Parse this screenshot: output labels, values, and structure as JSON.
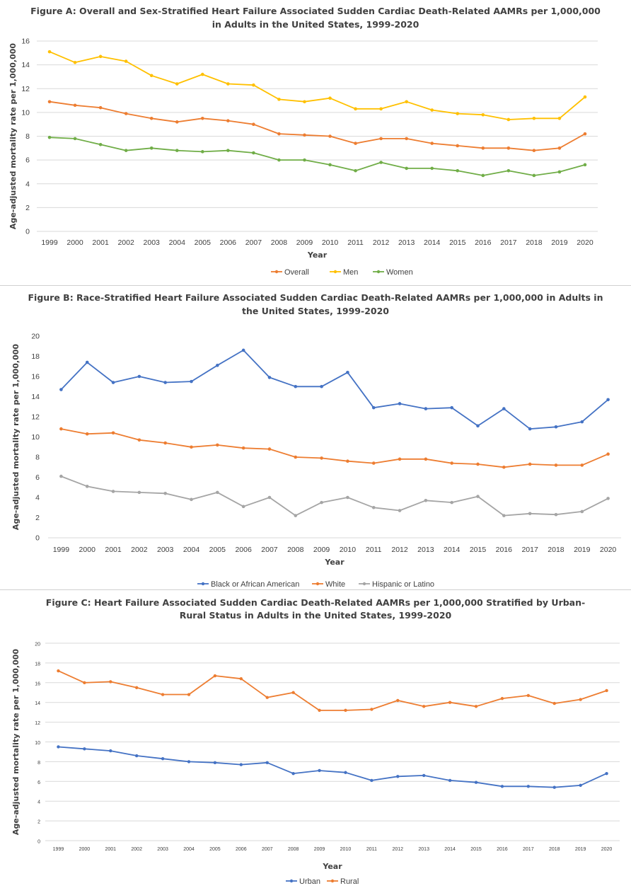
{
  "chart_data": [
    {
      "type": "line",
      "title_lines": [
        "Figure A: Overall and Sex-Stratified Heart Failure Associated Sudden Cardiac Death-Related AAMRs per 1,000,000",
        "in Adults in the United States, 1999-2020"
      ],
      "xlabel": "Year",
      "ylabel": "Age-adjusted mortality rate per 1,000,000",
      "ylim": [
        0,
        16
      ],
      "yticks": [
        "0",
        "2",
        "4",
        "6",
        "8",
        "10",
        "12",
        "14",
        "16"
      ],
      "categories": [
        "1999",
        "2000",
        "2001",
        "2002",
        "2003",
        "2004",
        "2005",
        "2006",
        "2007",
        "2008",
        "2009",
        "2010",
        "2011",
        "2012",
        "2013",
        "2014",
        "2015",
        "2016",
        "2017",
        "2018",
        "2019",
        "2020"
      ],
      "grid": true,
      "legend_position": "bottom",
      "series": [
        {
          "name": "Overall",
          "color": "#ED7D31",
          "values": [
            10.9,
            10.6,
            10.4,
            9.9,
            9.5,
            9.2,
            9.5,
            9.3,
            9.0,
            8.2,
            8.1,
            8.0,
            7.4,
            7.8,
            7.8,
            7.4,
            7.2,
            7.0,
            7.0,
            6.8,
            7.0,
            8.2
          ]
        },
        {
          "name": "Men",
          "color": "#FFC000",
          "values": [
            15.1,
            14.2,
            14.7,
            14.3,
            13.1,
            12.4,
            13.2,
            12.4,
            12.3,
            11.1,
            10.9,
            11.2,
            10.3,
            10.3,
            10.9,
            10.2,
            9.9,
            9.8,
            9.4,
            9.5,
            9.5,
            11.3
          ]
        },
        {
          "name": "Women",
          "color": "#70AD47",
          "values": [
            7.9,
            7.8,
            7.3,
            6.8,
            7.0,
            6.8,
            6.7,
            6.8,
            6.6,
            6.0,
            6.0,
            5.6,
            5.1,
            5.8,
            5.3,
            5.3,
            5.1,
            4.7,
            5.1,
            4.7,
            5.0,
            5.6
          ]
        }
      ]
    },
    {
      "type": "line",
      "title_lines": [
        "Figure B: Race-Stratified Heart Failure Associated Sudden Cardiac Death-Related AAMRs per 1,000,000 in Adults in",
        "the United States, 1999-2020"
      ],
      "xlabel": "Year",
      "ylabel": "Age-adjusted mortality rate per 1,000,000",
      "ylim": [
        0,
        20
      ],
      "yticks": [
        "0",
        "2",
        "4",
        "6",
        "8",
        "10",
        "12",
        "14",
        "16",
        "18",
        "20"
      ],
      "categories": [
        "1999",
        "2000",
        "2001",
        "2002",
        "2003",
        "2004",
        "2005",
        "2006",
        "2007",
        "2008",
        "2009",
        "2010",
        "2011",
        "2012",
        "2013",
        "2014",
        "2015",
        "2016",
        "2017",
        "2018",
        "2019",
        "2020"
      ],
      "grid": false,
      "legend_position": "bottom",
      "series": [
        {
          "name": "Black or African American",
          "color": "#4472C4",
          "values": [
            14.7,
            17.4,
            15.4,
            16.0,
            15.4,
            15.5,
            17.1,
            18.6,
            15.9,
            15.0,
            15.0,
            16.4,
            12.9,
            13.3,
            12.8,
            12.9,
            11.1,
            12.8,
            10.8,
            11.0,
            11.5,
            13.7
          ]
        },
        {
          "name": "White",
          "color": "#ED7D31",
          "values": [
            10.8,
            10.3,
            10.4,
            9.7,
            9.4,
            9.0,
            9.2,
            8.9,
            8.8,
            8.0,
            7.9,
            7.6,
            7.4,
            7.8,
            7.8,
            7.4,
            7.3,
            7.0,
            7.3,
            7.2,
            7.2,
            8.3
          ]
        },
        {
          "name": "Hispanic or Latino",
          "color": "#A5A5A5",
          "values": [
            6.1,
            5.1,
            4.6,
            4.5,
            4.4,
            3.8,
            4.5,
            3.1,
            4.0,
            2.2,
            3.5,
            4.0,
            3.0,
            2.7,
            3.7,
            3.5,
            4.1,
            2.2,
            2.4,
            2.3,
            2.6,
            3.9
          ]
        }
      ]
    },
    {
      "type": "line",
      "title_lines": [
        "Figure C: Heart Failure Associated Sudden Cardiac Death-Related AAMRs per 1,000,000 Stratified by Urban-",
        "Rural Status in Adults in the United States, 1999-2020"
      ],
      "xlabel": "Year",
      "ylabel": "Age-adjusted mortality rate per 1,000,000",
      "ylim": [
        0,
        20
      ],
      "yticks": [
        "0",
        "2",
        "4",
        "6",
        "8",
        "10",
        "12",
        "14",
        "16",
        "18",
        "20"
      ],
      "categories": [
        "1999",
        "2000",
        "2001",
        "2002",
        "2003",
        "2004",
        "2005",
        "2006",
        "2007",
        "2008",
        "2009",
        "2010",
        "2011",
        "2012",
        "2013",
        "2014",
        "2015",
        "2016",
        "2017",
        "2018",
        "2019",
        "2020"
      ],
      "grid": true,
      "legend_position": "bottom",
      "series": [
        {
          "name": "Urban",
          "color": "#4472C4",
          "values": [
            9.5,
            9.3,
            9.1,
            8.6,
            8.3,
            8.0,
            7.9,
            7.7,
            7.9,
            6.8,
            7.1,
            6.9,
            6.1,
            6.5,
            6.6,
            6.1,
            5.9,
            5.5,
            5.5,
            5.4,
            5.6,
            6.8
          ]
        },
        {
          "name": "Rural",
          "color": "#ED7D31",
          "values": [
            17.2,
            16.0,
            16.1,
            15.5,
            14.8,
            14.8,
            16.7,
            16.4,
            14.5,
            15.0,
            13.2,
            13.2,
            13.3,
            14.2,
            13.6,
            14.0,
            13.6,
            14.4,
            14.7,
            13.9,
            14.3,
            15.2
          ]
        }
      ]
    }
  ]
}
